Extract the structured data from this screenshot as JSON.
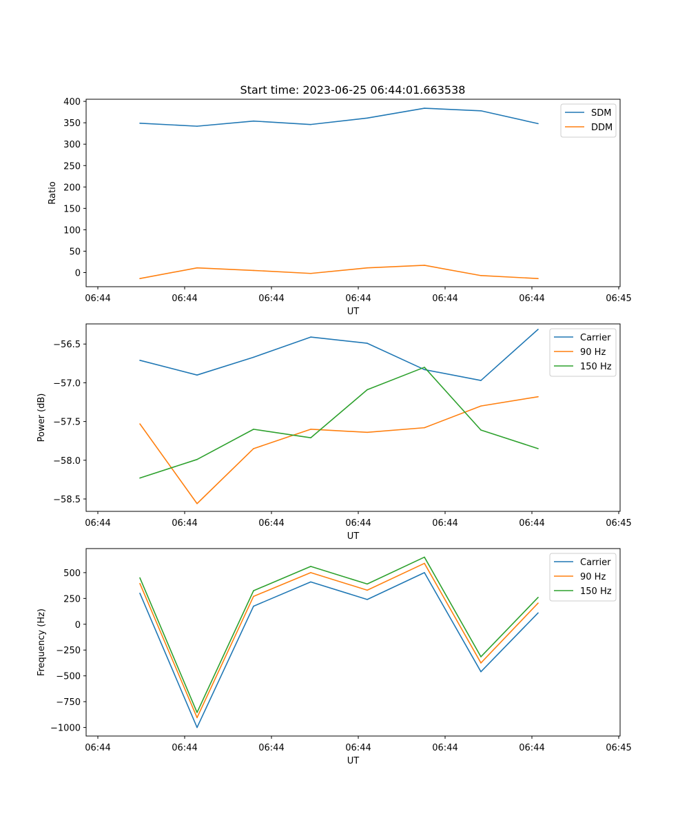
{
  "figure": {
    "title": "Start time: 2023-06-25 06:44:01.663538"
  },
  "chart_data": [
    {
      "type": "line",
      "xlabel": "UT",
      "ylabel": "Ratio",
      "xticks": [
        "06:44",
        "06:44",
        "06:44",
        "06:44",
        "06:44",
        "06:44",
        "06:45"
      ],
      "ylim": [
        -33,
        405
      ],
      "yticks": [
        0,
        50,
        100,
        150,
        200,
        250,
        300,
        350,
        400
      ],
      "legend": "top-right",
      "grid": false,
      "series": [
        {
          "name": "SDM",
          "color": "#1f77b4",
          "values": [
            349,
            342,
            354,
            346,
            361,
            384,
            378,
            348
          ]
        },
        {
          "name": "DDM",
          "color": "#ff7f0e",
          "values": [
            -14,
            11,
            5,
            -2,
            11,
            17,
            -7,
            -14
          ]
        }
      ]
    },
    {
      "type": "line",
      "xlabel": "UT",
      "ylabel": "Power (dB)",
      "xticks": [
        "06:44",
        "06:44",
        "06:44",
        "06:44",
        "06:44",
        "06:44",
        "06:45"
      ],
      "ylim": [
        -58.66,
        -56.24
      ],
      "yticks": [
        -58.5,
        -58.0,
        -57.5,
        -57.0,
        -56.5
      ],
      "ytick_labels": [
        "−58.5",
        "−58.0",
        "−57.5",
        "−57.0",
        "−56.5"
      ],
      "legend": "top-right",
      "grid": false,
      "series": [
        {
          "name": "Carrier",
          "color": "#1f77b4",
          "values": [
            -56.71,
            -56.9,
            -56.67,
            -56.41,
            -56.49,
            -56.83,
            -56.97,
            -56.31
          ]
        },
        {
          "name": "90 Hz",
          "color": "#ff7f0e",
          "values": [
            -57.53,
            -58.56,
            -57.85,
            -57.6,
            -57.64,
            -57.58,
            -57.3,
            -57.18
          ]
        },
        {
          "name": "150 Hz",
          "color": "#2ca02c",
          "values": [
            -58.23,
            -57.99,
            -57.6,
            -57.71,
            -57.09,
            -56.8,
            -57.61,
            -57.85
          ]
        }
      ]
    },
    {
      "type": "line",
      "xlabel": "UT",
      "ylabel": "Frequency (Hz)",
      "xticks": [
        "06:44",
        "06:44",
        "06:44",
        "06:44",
        "06:44",
        "06:44",
        "06:45"
      ],
      "ylim": [
        -1083,
        733
      ],
      "yticks": [
        -1000,
        -750,
        -500,
        -250,
        0,
        250,
        500
      ],
      "ytick_labels": [
        "−1000",
        "−750",
        "−500",
        "−250",
        "0",
        "250",
        "500"
      ],
      "legend": "top-right",
      "grid": false,
      "series": [
        {
          "name": "Carrier",
          "color": "#1f77b4",
          "values": [
            300,
            -1000,
            175,
            410,
            240,
            500,
            -460,
            110
          ]
        },
        {
          "name": "90 Hz",
          "color": "#ff7f0e",
          "values": [
            395,
            -905,
            270,
            500,
            330,
            590,
            -375,
            205
          ]
        },
        {
          "name": "150 Hz",
          "color": "#2ca02c",
          "values": [
            450,
            -855,
            325,
            560,
            390,
            650,
            -315,
            260
          ]
        }
      ]
    }
  ]
}
